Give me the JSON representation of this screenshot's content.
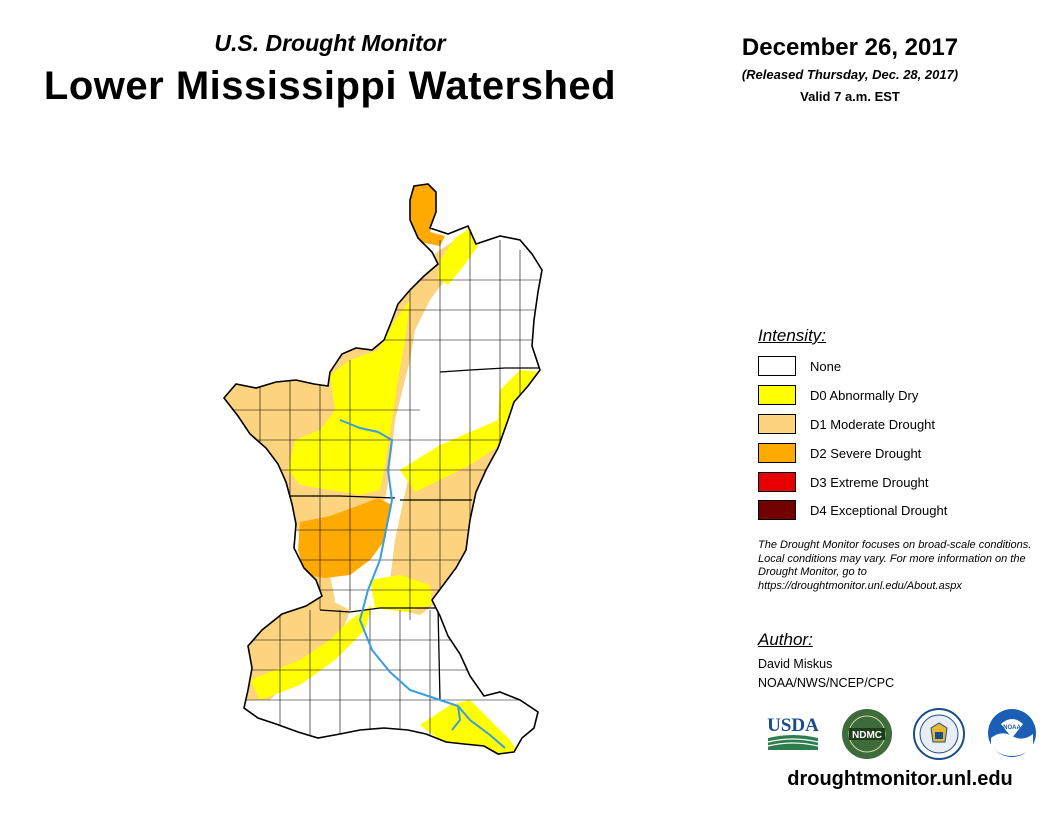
{
  "header": {
    "subtitle": "U.S. Drought Monitor",
    "title": "Lower Mississippi Watershed",
    "date": "December 26, 2017",
    "released": "(Released Thursday, Dec. 28, 2017)",
    "valid": "Valid 7 a.m. EST"
  },
  "legend": {
    "heading": "Intensity:",
    "items": [
      {
        "label": "None",
        "color": "#ffffff"
      },
      {
        "label": "D0 Abnormally Dry",
        "color": "#ffff00"
      },
      {
        "label": "D1 Moderate Drought",
        "color": "#fcd37f"
      },
      {
        "label": "D2 Severe Drought",
        "color": "#ffaa00"
      },
      {
        "label": "D3 Extreme Drought",
        "color": "#e60000"
      },
      {
        "label": "D4 Exceptional Drought",
        "color": "#730000"
      }
    ]
  },
  "note": "The Drought Monitor focuses on broad-scale conditions. Local conditions may vary. For more information on the Drought Monitor, go to https://droughtmonitor.unl.edu/About.aspx",
  "author": {
    "heading": "Author:",
    "name": "David Miskus",
    "org": "NOAA/NWS/NCEP/CPC"
  },
  "logos": {
    "usda": "USDA",
    "ndmc": "NDMC",
    "noaa": "NOAA"
  },
  "map_colors": {
    "river": "#3a9de0",
    "boundary": "#000000"
  },
  "footer": {
    "url": "droughtmonitor.unl.edu"
  }
}
